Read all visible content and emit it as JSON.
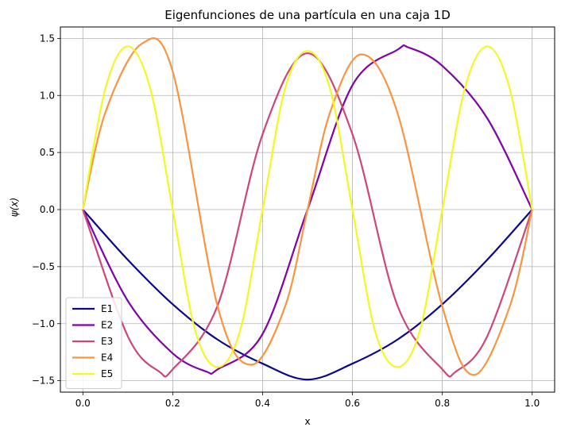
{
  "chart_data": {
    "type": "line",
    "title": "Eigenfunciones de una partícula en una caja 1D",
    "xlabel": "x",
    "ylabel": "ψ(x)",
    "xlim": [
      -0.05,
      1.05
    ],
    "ylim": [
      -1.6,
      1.6
    ],
    "xticks": [
      0.0,
      0.2,
      0.4,
      0.6,
      0.8,
      1.0
    ],
    "xtick_labels": [
      "0.0",
      "0.2",
      "0.4",
      "0.6",
      "0.8",
      "1.0"
    ],
    "yticks": [
      -1.5,
      -1.0,
      -0.5,
      0.0,
      0.5,
      1.0,
      1.5
    ],
    "ytick_labels": [
      "−1.5",
      "−1.0",
      "−0.5",
      "0.0",
      "0.5",
      "1.0",
      "1.5"
    ],
    "grid": true,
    "legend_position": "lower-left",
    "series": [
      {
        "name": "E1",
        "color": "#0d0887",
        "x": [
          0.0,
          0.1,
          0.2,
          0.3,
          0.4,
          0.5,
          0.6,
          0.7,
          0.8,
          0.9,
          1.0
        ],
        "y": [
          0.0,
          -0.44,
          -0.83,
          -1.14,
          -1.35,
          -1.49,
          -1.35,
          -1.14,
          -0.83,
          -0.44,
          0.0
        ]
      },
      {
        "name": "E2",
        "color": "#7e03a8",
        "x": [
          0.0,
          0.1,
          0.2,
          0.275,
          0.3,
          0.4,
          0.5,
          0.6,
          0.7,
          0.725,
          0.8,
          0.9,
          1.0
        ],
        "y": [
          0.0,
          -0.8,
          -1.26,
          -1.42,
          -1.4,
          -1.09,
          0.0,
          1.09,
          1.4,
          1.42,
          1.26,
          0.8,
          0.0
        ]
      },
      {
        "name": "E3",
        "color": "#cc4778",
        "x": [
          0.0,
          0.1,
          0.17,
          0.2,
          0.3,
          0.4,
          0.5,
          0.6,
          0.7,
          0.8,
          0.83,
          0.9,
          1.0
        ],
        "y": [
          0.0,
          -1.11,
          -1.42,
          -1.4,
          -0.84,
          0.66,
          1.37,
          0.66,
          -0.84,
          -1.4,
          -1.42,
          -1.11,
          0.0
        ]
      },
      {
        "name": "E4",
        "color": "#f89540",
        "x": [
          0.0,
          0.05,
          0.13,
          0.2,
          0.3,
          0.375,
          0.45,
          0.5,
          0.55,
          0.62,
          0.7,
          0.8,
          0.87,
          0.95,
          1.0
        ],
        "y": [
          0.0,
          0.85,
          1.45,
          1.21,
          -0.85,
          -1.36,
          -0.85,
          0.0,
          0.85,
          1.36,
          0.85,
          -0.85,
          -1.45,
          -0.85,
          0.0
        ]
      },
      {
        "name": "E5",
        "color": "#f0f921",
        "x": [
          0.0,
          0.05,
          0.1,
          0.15,
          0.2,
          0.25,
          0.3,
          0.35,
          0.4,
          0.45,
          0.5,
          0.55,
          0.6,
          0.65,
          0.7,
          0.75,
          0.8,
          0.85,
          0.9,
          0.95,
          1.0
        ],
        "y": [
          0.0,
          1.06,
          1.43,
          1.06,
          0.0,
          -1.06,
          -1.38,
          -1.06,
          0.0,
          1.06,
          1.39,
          1.06,
          0.0,
          -1.06,
          -1.38,
          -1.06,
          0.0,
          1.06,
          1.43,
          1.06,
          0.0
        ]
      }
    ]
  }
}
